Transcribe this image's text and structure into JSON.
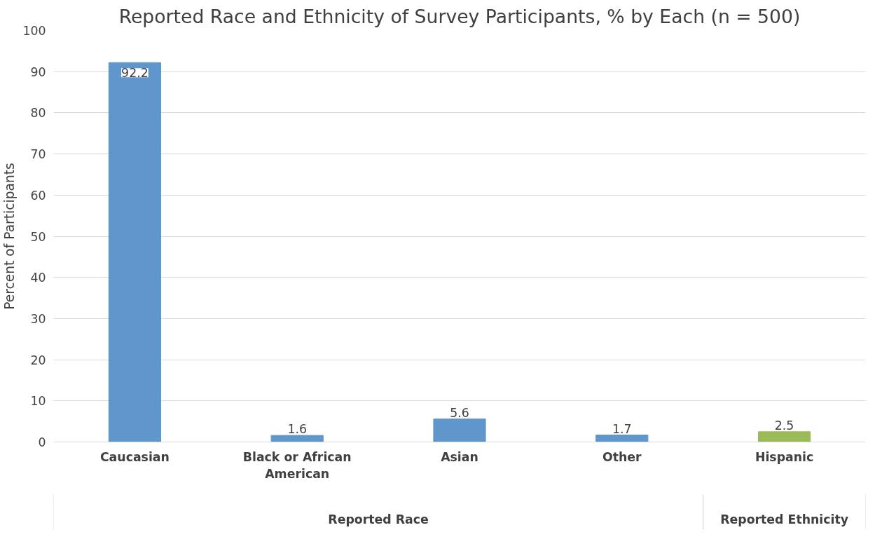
{
  "chart_data": {
    "type": "bar",
    "title": "Reported Race and Ethnicity of Survey Participants, % by Each (n = 500)",
    "ylabel": "Percent of Participants",
    "categories": [
      "Caucasian",
      "Black or African American",
      "Asian",
      "Other",
      "Hispanic"
    ],
    "values": [
      92.2,
      1.6,
      5.6,
      1.7,
      2.5
    ],
    "colors": [
      "#5f97cc",
      "#5f97cc",
      "#5f97cc",
      "#5f97cc",
      "#9bbb59"
    ],
    "ylim": [
      0,
      100
    ],
    "yticks": [
      0,
      10,
      20,
      30,
      40,
      50,
      60,
      70,
      80,
      90,
      100
    ],
    "grid": "y",
    "data_labels": true,
    "annotations": [
      "Reported Race",
      "Reported Ethnicity"
    ]
  }
}
